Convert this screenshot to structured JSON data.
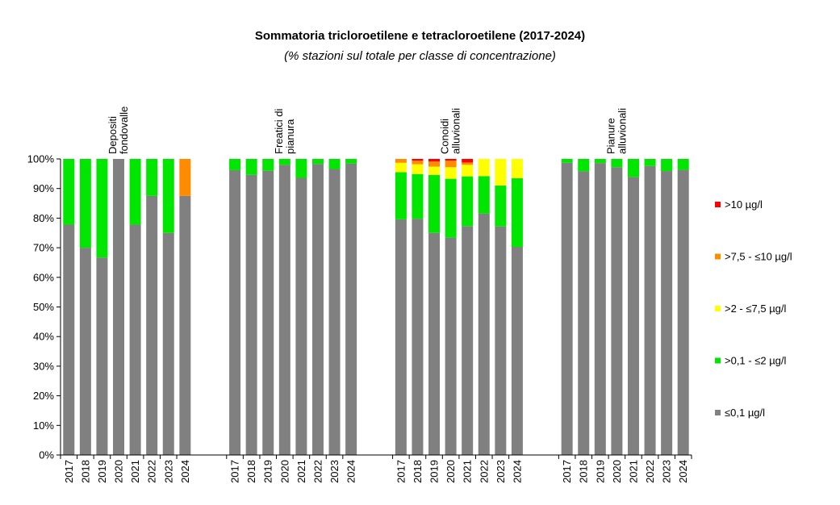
{
  "chart_data": {
    "type": "bar",
    "stacked": true,
    "normalized": true,
    "title": "Sommatoria tricloroetilene e tetracloroetilene (2017-2024)",
    "subtitle": "(% stazioni sul totale per classe di concentrazione)",
    "xlabel": "",
    "ylabel": "",
    "ylim": [
      0,
      100
    ],
    "y_ticks": [
      "0%",
      "10%",
      "20%",
      "30%",
      "40%",
      "50%",
      "60%",
      "70%",
      "80%",
      "90%",
      "100%"
    ],
    "legend_position": "right",
    "groups": [
      {
        "label_lines": [
          "Depositi",
          "fondovalle"
        ],
        "years": [
          "2017",
          "2018",
          "2019",
          "2020",
          "2021",
          "2022",
          "2023",
          "2024"
        ],
        "series": [
          {
            "name": "≤0,1 µg/l",
            "values": [
              77.8,
              70.0,
              66.7,
              100.0,
              77.8,
              87.5,
              75.0,
              87.5
            ]
          },
          {
            "name": ">0,1 - ≤2 µg/l",
            "values": [
              22.2,
              30.0,
              33.3,
              0.0,
              22.2,
              12.5,
              25.0,
              0.0
            ]
          },
          {
            "name": ">2 - ≤7,5 µg/l",
            "values": [
              0,
              0,
              0,
              0,
              0,
              0,
              0,
              0
            ]
          },
          {
            "name": ">7,5 - ≤10 µg/l",
            "values": [
              0,
              0,
              0,
              0,
              0,
              0,
              0,
              12.5
            ]
          },
          {
            "name": ">10 µg/l",
            "values": [
              0,
              0,
              0,
              0,
              0,
              0,
              0,
              0
            ]
          }
        ]
      },
      {
        "label_lines": [
          "Freatici di",
          "pianura"
        ],
        "years": [
          "2017",
          "2018",
          "2019",
          "2020",
          "2021",
          "2022",
          "2023",
          "2024"
        ],
        "series": [
          {
            "name": "≤0,1 µg/l",
            "values": [
              96.2,
              94.6,
              96.0,
              98.0,
              93.6,
              98.3,
              96.6,
              98.4
            ]
          },
          {
            "name": ">0,1 - ≤2 µg/l",
            "values": [
              3.8,
              5.4,
              4.0,
              2.0,
              6.4,
              1.7,
              3.4,
              1.6
            ]
          },
          {
            "name": ">2 - ≤7,5 µg/l",
            "values": [
              0,
              0,
              0,
              0,
              0,
              0,
              0,
              0
            ]
          },
          {
            "name": ">7,5 - ≤10 µg/l",
            "values": [
              0,
              0,
              0,
              0,
              0,
              0,
              0,
              0
            ]
          },
          {
            "name": ">10 µg/l",
            "values": [
              0,
              0,
              0,
              0,
              0,
              0,
              0,
              0
            ]
          }
        ]
      },
      {
        "label_lines": [
          "Conoidi",
          "alluvionali"
        ],
        "years": [
          "2017",
          "2018",
          "2019",
          "2020",
          "2021",
          "2022",
          "2023",
          "2024"
        ],
        "series": [
          {
            "name": "≤0,1 µg/l",
            "values": [
              79.6,
              79.8,
              75.0,
              73.4,
              77.3,
              81.5,
              77.2,
              70.3
            ]
          },
          {
            "name": ">0,1 - ≤2 µg/l",
            "values": [
              15.9,
              15.1,
              19.6,
              19.9,
              16.8,
              12.7,
              13.8,
              23.2
            ]
          },
          {
            "name": ">2 - ≤7,5 µg/l",
            "values": [
              3.2,
              3.3,
              2.8,
              3.9,
              3.9,
              5.8,
              9.0,
              6.5
            ]
          },
          {
            "name": ">7,5 - ≤10 µg/l",
            "values": [
              1.3,
              1.2,
              1.7,
              2.2,
              0.8,
              0.0,
              0.0,
              0.0
            ]
          },
          {
            "name": ">10 µg/l",
            "values": [
              0.0,
              0.6,
              0.9,
              0.6,
              1.2,
              0.0,
              0.0,
              0.0
            ]
          }
        ]
      },
      {
        "label_lines": [
          "Pianure",
          "alluvionali"
        ],
        "years": [
          "2017",
          "2018",
          "2019",
          "2020",
          "2021",
          "2022",
          "2023",
          "2024"
        ],
        "series": [
          {
            "name": "≤0,1 µg/l",
            "values": [
              98.7,
              95.8,
              98.6,
              97.2,
              93.9,
              97.6,
              95.9,
              96.3
            ]
          },
          {
            "name": ">0,1 - ≤2 µg/l",
            "values": [
              1.3,
              4.2,
              1.4,
              2.8,
              6.1,
              2.4,
              4.1,
              3.7
            ]
          },
          {
            "name": ">2 - ≤7,5 µg/l",
            "values": [
              0,
              0,
              0,
              0,
              0,
              0,
              0,
              0
            ]
          },
          {
            "name": ">7,5 - ≤10 µg/l",
            "values": [
              0,
              0,
              0,
              0,
              0,
              0,
              0,
              0
            ]
          },
          {
            "name": ">10 µg/l",
            "values": [
              0,
              0,
              0,
              0,
              0,
              0,
              0,
              0
            ]
          }
        ]
      }
    ],
    "legend": [
      {
        "label": ">10 µg/l",
        "color": "#FF0000"
      },
      {
        "label": ">7,5 - ≤10 µg/l",
        "color": "#FF8C00"
      },
      {
        "label": ">2 - ≤7,5 µg/l",
        "color": "#FFFF00"
      },
      {
        "label": ">0,1 - ≤2 µg/l",
        "color": "#00E600"
      },
      {
        "label": "≤0,1 µg/l",
        "color": "#808080"
      }
    ],
    "series_colors": [
      "#808080",
      "#00E600",
      "#FFFF00",
      "#FF8C00",
      "#FF0000"
    ]
  }
}
